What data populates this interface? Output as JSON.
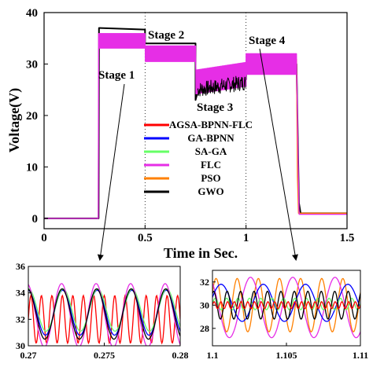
{
  "chart_data": [
    {
      "type": "line",
      "xlabel": "Time in Sec.",
      "ylabel": "Voltage(V)",
      "xlim": [
        0,
        1.5
      ],
      "ylim": [
        -2,
        40
      ],
      "x_ticks": [
        "0",
        "0.5",
        "1",
        "1.5"
      ],
      "y_ticks": [
        "0",
        "10",
        "20",
        "30",
        "40"
      ],
      "grid": "vertical dotted lines at 0.5 and 1",
      "legend_position": "center-right",
      "series": [
        {
          "name": "AGSA-BPNN-FLC",
          "color": "#ff0000"
        },
        {
          "name": "GA-BPNN",
          "color": "#0000ff"
        },
        {
          "name": "SA-GA",
          "color": "#66ff66"
        },
        {
          "name": "FLC",
          "color": "#e62ee6"
        },
        {
          "name": "PSO",
          "color": "#ff8000"
        },
        {
          "name": "GWO",
          "color": "#000000"
        }
      ],
      "stages": [
        {
          "label": "Stage 1",
          "x": [
            0.27,
            0.5
          ],
          "level": 34.5
        },
        {
          "label": "Stage 2",
          "x": [
            0.5,
            0.75
          ],
          "level": 32
        },
        {
          "label": "Stage 3",
          "x": [
            0.75,
            1.0
          ],
          "level": 27
        },
        {
          "label": "Stage 4",
          "x": [
            1.0,
            1.25
          ],
          "level": 30
        }
      ],
      "curve_points": {
        "x": [
          0,
          0.27,
          0.275,
          0.5,
          0.5,
          0.75,
          0.75,
          1.0,
          1.0,
          1.25,
          1.26,
          1.27,
          1.5
        ],
        "y": [
          0,
          0,
          36.5,
          34.5,
          32,
          32,
          27,
          28,
          30,
          30,
          8,
          1,
          1
        ]
      }
    },
    {
      "type": "line",
      "title": "",
      "xlim": [
        0.27,
        0.28
      ],
      "ylim": [
        30,
        36
      ],
      "x_ticks": [
        "0.27",
        "0.275",
        "0.28"
      ],
      "y_ticks": [
        "30",
        "32",
        "34",
        "36"
      ],
      "series": [
        {
          "name": "AGSA-BPNN-FLC",
          "color": "#ff0000",
          "center": 32,
          "amplitude": 1.8,
          "cycles": 14.5,
          "phase": 0.0
        },
        {
          "name": "GA-BPNN",
          "color": "#0000ff",
          "center": 32.5,
          "amplitude": 1.7,
          "cycles": 4.4,
          "phase": 1.6
        },
        {
          "name": "SA-GA",
          "color": "#66ff66",
          "center": 32.7,
          "amplitude": 1.6,
          "cycles": 4.4,
          "phase": 1.5
        },
        {
          "name": "FLC",
          "color": "#e62ee6",
          "center": 32.3,
          "amplitude": 2.4,
          "cycles": 4.4,
          "phase": 1.8
        },
        {
          "name": "GWO",
          "color": "#000000",
          "center": 32.4,
          "amplitude": 1.9,
          "cycles": 4.4,
          "phase": 1.7
        }
      ]
    },
    {
      "type": "line",
      "title": "",
      "xlim": [
        1.1,
        1.11
      ],
      "ylim": [
        26.5,
        33
      ],
      "x_ticks": [
        "1.1",
        "1.105",
        "1.11"
      ],
      "y_ticks": [
        "28",
        "30",
        "32"
      ],
      "series": [
        {
          "name": "PSO",
          "color": "#ff8000",
          "center": 30,
          "amplitude": 2.3,
          "cycles": 7,
          "phase": 0.5
        },
        {
          "name": "FLC",
          "color": "#e62ee6",
          "center": 29.8,
          "amplitude": 2.6,
          "cycles": 3.5,
          "phase": 2.2
        },
        {
          "name": "GA-BPNN",
          "color": "#0000ff",
          "center": 30.2,
          "amplitude": 1.6,
          "cycles": 3.5,
          "phase": 0.3
        },
        {
          "name": "SA-GA",
          "color": "#66ff66",
          "center": 30.1,
          "amplitude": 0.5,
          "cycles": 13,
          "phase": 0.0
        },
        {
          "name": "GWO",
          "color": "#000000",
          "center": 30,
          "amplitude": 1.2,
          "cycles": 11,
          "phase": 1.0
        },
        {
          "name": "AGSA-BPNN-FLC",
          "color": "#ff0000",
          "center": 30,
          "amplitude": 0.3,
          "cycles": 22,
          "phase": 0.0
        }
      ]
    }
  ]
}
